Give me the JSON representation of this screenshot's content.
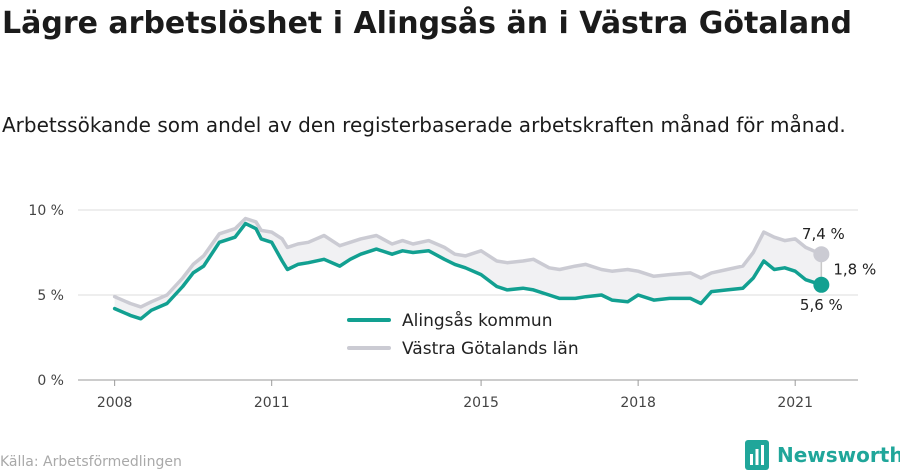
{
  "title": "Lägre arbetslöshet i Alingsås än i Västra Götaland",
  "subtitle": "Arbetssökande som andel av den registerbaserade arbetskraften månad för månad.",
  "source": "Källa: Arbetsförmedlingen",
  "brand": "Newsworthy",
  "colors": {
    "primary": "#12a091",
    "secondary": "#cbcbd3",
    "fill": "#f1f1f3",
    "grid": "#dcdcdc",
    "brand": "#20a69a"
  },
  "chart_data": {
    "type": "line",
    "title": "Lägre arbetslöshet i Alingsås än i Västra Götaland",
    "xlabel": "",
    "ylabel": "",
    "y_ticks": [
      {
        "value": 0,
        "label": "0 %"
      },
      {
        "value": 5,
        "label": "5 %"
      },
      {
        "value": 10,
        "label": "10 %"
      }
    ],
    "x_ticks": [
      {
        "value": 2008.0,
        "label": "2008"
      },
      {
        "value": 2011.0,
        "label": "2011"
      },
      {
        "value": 2015.0,
        "label": "2015"
      },
      {
        "value": 2018.0,
        "label": "2018"
      },
      {
        "value": 2021.0,
        "label": "2021"
      }
    ],
    "xlim": [
      2007.3,
      2022.2
    ],
    "ylim": [
      0,
      10
    ],
    "grid": true,
    "legend_position": "bottom-center",
    "annotations": {
      "last_secondary": "7,4 %",
      "last_primary": "5,6 %",
      "difference": "1,8 %"
    },
    "series": [
      {
        "name": "Alingsås kommun",
        "color": "#12a091",
        "points": [
          [
            2008.0,
            4.2
          ],
          [
            2008.3,
            3.8
          ],
          [
            2008.5,
            3.6
          ],
          [
            2008.7,
            4.1
          ],
          [
            2009.0,
            4.5
          ],
          [
            2009.3,
            5.5
          ],
          [
            2009.5,
            6.3
          ],
          [
            2009.7,
            6.7
          ],
          [
            2010.0,
            8.1
          ],
          [
            2010.3,
            8.4
          ],
          [
            2010.5,
            9.2
          ],
          [
            2010.7,
            8.9
          ],
          [
            2010.8,
            8.3
          ],
          [
            2011.0,
            8.1
          ],
          [
            2011.2,
            7.0
          ],
          [
            2011.3,
            6.5
          ],
          [
            2011.5,
            6.8
          ],
          [
            2011.7,
            6.9
          ],
          [
            2012.0,
            7.1
          ],
          [
            2012.3,
            6.7
          ],
          [
            2012.5,
            7.1
          ],
          [
            2012.7,
            7.4
          ],
          [
            2013.0,
            7.7
          ],
          [
            2013.3,
            7.4
          ],
          [
            2013.5,
            7.6
          ],
          [
            2013.7,
            7.5
          ],
          [
            2014.0,
            7.6
          ],
          [
            2014.3,
            7.1
          ],
          [
            2014.5,
            6.8
          ],
          [
            2014.7,
            6.6
          ],
          [
            2015.0,
            6.2
          ],
          [
            2015.3,
            5.5
          ],
          [
            2015.5,
            5.3
          ],
          [
            2015.8,
            5.4
          ],
          [
            2016.0,
            5.3
          ],
          [
            2016.3,
            5.0
          ],
          [
            2016.5,
            4.8
          ],
          [
            2016.8,
            4.8
          ],
          [
            2017.0,
            4.9
          ],
          [
            2017.3,
            5.0
          ],
          [
            2017.5,
            4.7
          ],
          [
            2017.8,
            4.6
          ],
          [
            2018.0,
            5.0
          ],
          [
            2018.3,
            4.7
          ],
          [
            2018.6,
            4.8
          ],
          [
            2019.0,
            4.8
          ],
          [
            2019.2,
            4.5
          ],
          [
            2019.4,
            5.2
          ],
          [
            2019.7,
            5.3
          ],
          [
            2020.0,
            5.4
          ],
          [
            2020.2,
            6.0
          ],
          [
            2020.4,
            7.0
          ],
          [
            2020.6,
            6.5
          ],
          [
            2020.8,
            6.6
          ],
          [
            2021.0,
            6.4
          ],
          [
            2021.2,
            5.9
          ],
          [
            2021.5,
            5.6
          ]
        ]
      },
      {
        "name": "Västra Götalands län",
        "color": "#cbcbd3",
        "points": [
          [
            2008.0,
            4.9
          ],
          [
            2008.3,
            4.5
          ],
          [
            2008.5,
            4.3
          ],
          [
            2008.7,
            4.6
          ],
          [
            2009.0,
            5.0
          ],
          [
            2009.3,
            6.0
          ],
          [
            2009.5,
            6.8
          ],
          [
            2009.7,
            7.3
          ],
          [
            2010.0,
            8.6
          ],
          [
            2010.3,
            8.9
          ],
          [
            2010.5,
            9.5
          ],
          [
            2010.7,
            9.3
          ],
          [
            2010.8,
            8.8
          ],
          [
            2011.0,
            8.7
          ],
          [
            2011.2,
            8.3
          ],
          [
            2011.3,
            7.8
          ],
          [
            2011.5,
            8.0
          ],
          [
            2011.7,
            8.1
          ],
          [
            2012.0,
            8.5
          ],
          [
            2012.3,
            7.9
          ],
          [
            2012.5,
            8.1
          ],
          [
            2012.7,
            8.3
          ],
          [
            2013.0,
            8.5
          ],
          [
            2013.3,
            8.0
          ],
          [
            2013.5,
            8.2
          ],
          [
            2013.7,
            8.0
          ],
          [
            2014.0,
            8.2
          ],
          [
            2014.3,
            7.8
          ],
          [
            2014.5,
            7.4
          ],
          [
            2014.7,
            7.3
          ],
          [
            2015.0,
            7.6
          ],
          [
            2015.3,
            7.0
          ],
          [
            2015.5,
            6.9
          ],
          [
            2015.8,
            7.0
          ],
          [
            2016.0,
            7.1
          ],
          [
            2016.3,
            6.6
          ],
          [
            2016.5,
            6.5
          ],
          [
            2016.8,
            6.7
          ],
          [
            2017.0,
            6.8
          ],
          [
            2017.3,
            6.5
          ],
          [
            2017.5,
            6.4
          ],
          [
            2017.8,
            6.5
          ],
          [
            2018.0,
            6.4
          ],
          [
            2018.3,
            6.1
          ],
          [
            2018.6,
            6.2
          ],
          [
            2019.0,
            6.3
          ],
          [
            2019.2,
            6.0
          ],
          [
            2019.4,
            6.3
          ],
          [
            2019.7,
            6.5
          ],
          [
            2020.0,
            6.7
          ],
          [
            2020.2,
            7.5
          ],
          [
            2020.4,
            8.7
          ],
          [
            2020.6,
            8.4
          ],
          [
            2020.8,
            8.2
          ],
          [
            2021.0,
            8.3
          ],
          [
            2021.2,
            7.8
          ],
          [
            2021.5,
            7.4
          ]
        ]
      }
    ]
  }
}
